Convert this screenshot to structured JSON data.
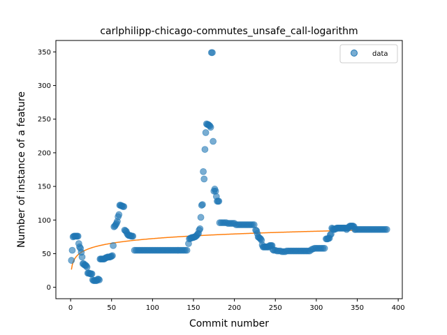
{
  "chart_data": {
    "type": "scatter",
    "title": "carlphilipp-chicago-commutes_unsafe_call-logarithm",
    "xlabel": "Commit number",
    "ylabel": "Number of instance of a feature",
    "xlim": [
      -18,
      405
    ],
    "ylim": [
      -17,
      367
    ],
    "xticks": [
      0,
      50,
      100,
      150,
      200,
      250,
      300,
      350,
      400
    ],
    "yticks": [
      0,
      50,
      100,
      150,
      200,
      250,
      300,
      350
    ],
    "grid": false,
    "legend": {
      "placement": "top-right",
      "entries": [
        "data"
      ]
    },
    "colors": {
      "data": "#1f77b4",
      "fit": "#ff7f0e"
    },
    "series": [
      {
        "name": "data",
        "kind": "scatter",
        "points": [
          [
            1,
            40
          ],
          [
            2,
            55
          ],
          [
            3,
            75
          ],
          [
            4,
            76
          ],
          [
            5,
            76
          ],
          [
            6,
            76
          ],
          [
            7,
            76
          ],
          [
            8,
            76
          ],
          [
            9,
            76
          ],
          [
            10,
            65
          ],
          [
            11,
            60
          ],
          [
            12,
            58
          ],
          [
            13,
            52
          ],
          [
            14,
            45
          ],
          [
            15,
            35
          ],
          [
            16,
            35
          ],
          [
            17,
            33
          ],
          [
            18,
            33
          ],
          [
            19,
            32
          ],
          [
            20,
            30
          ],
          [
            21,
            21
          ],
          [
            22,
            21
          ],
          [
            23,
            21
          ],
          [
            24,
            20
          ],
          [
            25,
            20
          ],
          [
            26,
            20
          ],
          [
            27,
            11
          ],
          [
            28,
            10
          ],
          [
            29,
            10
          ],
          [
            30,
            10
          ],
          [
            31,
            10
          ],
          [
            32,
            10
          ],
          [
            33,
            12
          ],
          [
            34,
            12
          ],
          [
            35,
            11
          ],
          [
            36,
            42
          ],
          [
            37,
            42
          ],
          [
            38,
            42
          ],
          [
            39,
            42
          ],
          [
            40,
            42
          ],
          [
            41,
            42
          ],
          [
            42,
            43
          ],
          [
            43,
            44
          ],
          [
            44,
            44
          ],
          [
            45,
            45
          ],
          [
            46,
            45
          ],
          [
            47,
            45
          ],
          [
            48,
            45
          ],
          [
            49,
            46
          ],
          [
            50,
            46
          ],
          [
            51,
            47
          ],
          [
            52,
            62
          ],
          [
            53,
            90
          ],
          [
            54,
            91
          ],
          [
            55,
            93
          ],
          [
            56,
            95
          ],
          [
            57,
            98
          ],
          [
            58,
            105
          ],
          [
            59,
            108
          ],
          [
            60,
            122
          ],
          [
            61,
            122
          ],
          [
            62,
            121
          ],
          [
            63,
            121
          ],
          [
            64,
            120
          ],
          [
            65,
            120
          ],
          [
            66,
            85
          ],
          [
            67,
            84
          ],
          [
            68,
            83
          ],
          [
            69,
            80
          ],
          [
            70,
            78
          ],
          [
            71,
            77
          ],
          [
            72,
            77
          ],
          [
            73,
            77
          ],
          [
            74,
            76
          ],
          [
            75,
            76
          ],
          [
            76,
            76
          ],
          [
            78,
            55
          ],
          [
            80,
            55
          ],
          [
            82,
            55
          ],
          [
            84,
            55
          ],
          [
            86,
            55
          ],
          [
            88,
            55
          ],
          [
            90,
            55
          ],
          [
            92,
            55
          ],
          [
            94,
            55
          ],
          [
            96,
            55
          ],
          [
            98,
            55
          ],
          [
            100,
            55
          ],
          [
            102,
            55
          ],
          [
            104,
            55
          ],
          [
            106,
            55
          ],
          [
            108,
            55
          ],
          [
            110,
            55
          ],
          [
            112,
            55
          ],
          [
            114,
            55
          ],
          [
            116,
            55
          ],
          [
            118,
            55
          ],
          [
            120,
            55
          ],
          [
            122,
            55
          ],
          [
            124,
            55
          ],
          [
            126,
            55
          ],
          [
            128,
            55
          ],
          [
            130,
            55
          ],
          [
            132,
            55
          ],
          [
            134,
            55
          ],
          [
            136,
            55
          ],
          [
            138,
            55
          ],
          [
            140,
            55
          ],
          [
            142,
            55
          ],
          [
            144,
            65
          ],
          [
            145,
            72
          ],
          [
            146,
            73
          ],
          [
            147,
            73
          ],
          [
            148,
            74
          ],
          [
            149,
            74
          ],
          [
            150,
            74
          ],
          [
            151,
            75
          ],
          [
            152,
            75
          ],
          [
            153,
            76
          ],
          [
            154,
            77
          ],
          [
            155,
            79
          ],
          [
            156,
            80
          ],
          [
            157,
            85
          ],
          [
            158,
            87
          ],
          [
            159,
            104
          ],
          [
            160,
            122
          ],
          [
            161,
            123
          ],
          [
            162,
            172
          ],
          [
            163,
            161
          ],
          [
            164,
            205
          ],
          [
            165,
            230
          ],
          [
            166,
            243
          ],
          [
            167,
            242
          ],
          [
            168,
            242
          ],
          [
            169,
            241
          ],
          [
            170,
            240
          ],
          [
            171,
            238
          ],
          [
            172,
            349
          ],
          [
            173,
            349
          ],
          [
            174,
            217
          ],
          [
            175,
            143
          ],
          [
            176,
            146
          ],
          [
            177,
            143
          ],
          [
            178,
            135
          ],
          [
            179,
            128
          ],
          [
            180,
            128
          ],
          [
            181,
            128
          ],
          [
            182,
            96
          ],
          [
            184,
            96
          ],
          [
            186,
            96
          ],
          [
            188,
            96
          ],
          [
            190,
            96
          ],
          [
            192,
            95
          ],
          [
            194,
            95
          ],
          [
            196,
            95
          ],
          [
            198,
            95
          ],
          [
            200,
            95
          ],
          [
            202,
            93
          ],
          [
            204,
            93
          ],
          [
            206,
            93
          ],
          [
            208,
            93
          ],
          [
            210,
            93
          ],
          [
            212,
            93
          ],
          [
            214,
            93
          ],
          [
            216,
            93
          ],
          [
            218,
            93
          ],
          [
            220,
            93
          ],
          [
            222,
            93
          ],
          [
            224,
            93
          ],
          [
            226,
            85
          ],
          [
            227,
            84
          ],
          [
            228,
            80
          ],
          [
            229,
            75
          ],
          [
            230,
            74
          ],
          [
            231,
            73
          ],
          [
            232,
            72
          ],
          [
            233,
            70
          ],
          [
            234,
            63
          ],
          [
            235,
            60
          ],
          [
            236,
            60
          ],
          [
            237,
            60
          ],
          [
            238,
            60
          ],
          [
            239,
            60
          ],
          [
            240,
            60
          ],
          [
            241,
            60
          ],
          [
            242,
            60
          ],
          [
            243,
            62
          ],
          [
            244,
            62
          ],
          [
            245,
            62
          ],
          [
            246,
            62
          ],
          [
            247,
            56
          ],
          [
            248,
            55
          ],
          [
            250,
            55
          ],
          [
            252,
            54
          ],
          [
            254,
            54
          ],
          [
            256,
            54
          ],
          [
            258,
            53
          ],
          [
            260,
            53
          ],
          [
            262,
            53
          ],
          [
            264,
            54
          ],
          [
            266,
            54
          ],
          [
            268,
            54
          ],
          [
            270,
            54
          ],
          [
            272,
            54
          ],
          [
            274,
            54
          ],
          [
            276,
            54
          ],
          [
            278,
            54
          ],
          [
            280,
            54
          ],
          [
            282,
            54
          ],
          [
            284,
            54
          ],
          [
            286,
            54
          ],
          [
            288,
            54
          ],
          [
            290,
            54
          ],
          [
            292,
            54
          ],
          [
            294,
            56
          ],
          [
            296,
            57
          ],
          [
            298,
            58
          ],
          [
            300,
            58
          ],
          [
            302,
            58
          ],
          [
            304,
            58
          ],
          [
            306,
            58
          ],
          [
            308,
            58
          ],
          [
            310,
            58
          ],
          [
            312,
            72
          ],
          [
            313,
            72
          ],
          [
            314,
            72
          ],
          [
            315,
            73
          ],
          [
            316,
            73
          ],
          [
            317,
            78
          ],
          [
            318,
            79
          ],
          [
            319,
            88
          ],
          [
            320,
            87
          ],
          [
            321,
            86
          ],
          [
            322,
            86
          ],
          [
            323,
            87
          ],
          [
            324,
            87
          ],
          [
            325,
            88
          ],
          [
            326,
            88
          ],
          [
            327,
            88
          ],
          [
            328,
            88
          ],
          [
            329,
            88
          ],
          [
            330,
            88
          ],
          [
            331,
            88
          ],
          [
            332,
            88
          ],
          [
            333,
            88
          ],
          [
            334,
            88
          ],
          [
            335,
            88
          ],
          [
            336,
            88
          ],
          [
            337,
            86
          ],
          [
            338,
            88
          ],
          [
            339,
            88
          ],
          [
            340,
            90
          ],
          [
            341,
            91
          ],
          [
            342,
            91
          ],
          [
            343,
            91
          ],
          [
            344,
            91
          ],
          [
            345,
            91
          ],
          [
            346,
            90
          ],
          [
            347,
            86
          ],
          [
            348,
            86
          ],
          [
            350,
            86
          ],
          [
            352,
            86
          ],
          [
            354,
            86
          ],
          [
            356,
            86
          ],
          [
            358,
            86
          ],
          [
            360,
            86
          ],
          [
            362,
            86
          ],
          [
            364,
            86
          ],
          [
            366,
            86
          ],
          [
            368,
            86
          ],
          [
            370,
            86
          ],
          [
            372,
            86
          ],
          [
            374,
            86
          ],
          [
            376,
            86
          ],
          [
            378,
            86
          ],
          [
            380,
            86
          ],
          [
            382,
            86
          ],
          [
            384,
            86
          ],
          [
            386,
            86
          ]
        ]
      },
      {
        "kind": "line",
        "fit": {
          "model": "logarithmic",
          "a": 26.3,
          "b": 10.0
        },
        "x_range": [
          1,
          386
        ]
      }
    ]
  }
}
